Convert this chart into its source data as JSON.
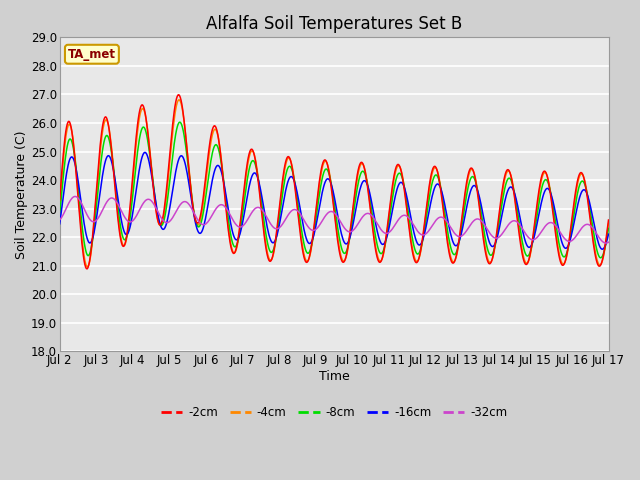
{
  "title": "Alfalfa Soil Temperatures Set B",
  "xlabel": "Time",
  "ylabel": "Soil Temperature (C)",
  "ylim": [
    18.0,
    29.0
  ],
  "yticks": [
    18.0,
    19.0,
    20.0,
    21.0,
    22.0,
    23.0,
    24.0,
    25.0,
    26.0,
    27.0,
    28.0,
    29.0
  ],
  "xtick_labels": [
    "Jul 2",
    "Jul 3",
    "Jul 4",
    "Jul 5",
    "Jul 6",
    "Jul 7",
    "Jul 8",
    "Jul 9",
    "Jul 10",
    "Jul 11",
    "Jul 12",
    "Jul 13",
    "Jul 14",
    "Jul 15",
    "Jul 16",
    "Jul 17"
  ],
  "series_colors": {
    "-2cm": "#ff0000",
    "-4cm": "#ff8800",
    "-8cm": "#00dd00",
    "-16cm": "#0000ff",
    "-32cm": "#cc44cc"
  },
  "legend_label": "TA_met",
  "fig_bg": "#d0d0d0",
  "plot_bg": "#e8e8e8",
  "title_fontsize": 12,
  "axis_fontsize": 9,
  "tick_fontsize": 8.5
}
